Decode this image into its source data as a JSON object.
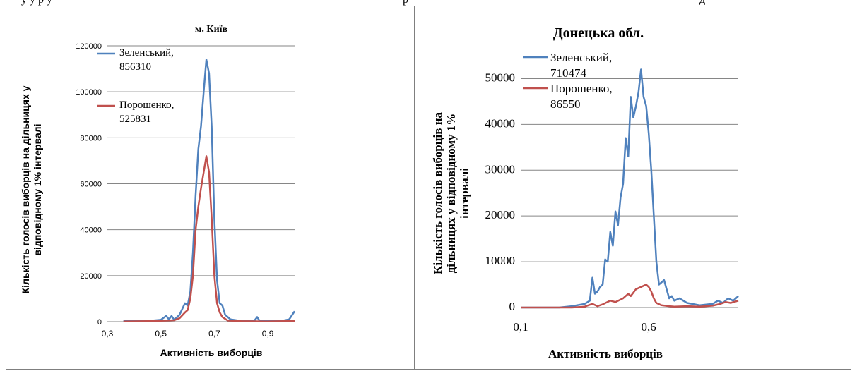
{
  "header_fragment": {
    "left": "у у р у",
    "mid": "р",
    "right": "д"
  },
  "chart_data": [
    {
      "type": "line",
      "title": "м. Київ",
      "xlabel": "Активність виборців",
      "ylabel": "Кількість голосів виборців на дільницях у відповідному 1% інтервалі",
      "xlim": [
        0.3,
        1.0
      ],
      "ylim": [
        0,
        120000
      ],
      "x_ticks": [
        "0,3",
        "0,5",
        "0,7",
        "0,9"
      ],
      "y_ticks": [
        "0",
        "20000",
        "40000",
        "60000",
        "80000",
        "100000",
        "120000"
      ],
      "grid": "horizontal",
      "series": [
        {
          "name": "Зеленський,",
          "total": "856310",
          "color": "#4f81bd",
          "points": [
            [
              0.36,
              200
            ],
            [
              0.41,
              400
            ],
            [
              0.45,
              300
            ],
            [
              0.5,
              800
            ],
            [
              0.52,
              2500
            ],
            [
              0.53,
              1000
            ],
            [
              0.54,
              2500
            ],
            [
              0.55,
              800
            ],
            [
              0.57,
              3000
            ],
            [
              0.59,
              8000
            ],
            [
              0.6,
              7000
            ],
            [
              0.61,
              13000
            ],
            [
              0.62,
              30000
            ],
            [
              0.63,
              55000
            ],
            [
              0.64,
              75000
            ],
            [
              0.65,
              85000
            ],
            [
              0.66,
              100000
            ],
            [
              0.67,
              114000
            ],
            [
              0.68,
              108000
            ],
            [
              0.69,
              85000
            ],
            [
              0.7,
              45000
            ],
            [
              0.71,
              18000
            ],
            [
              0.72,
              8000
            ],
            [
              0.73,
              7000
            ],
            [
              0.74,
              3000
            ],
            [
              0.76,
              1000
            ],
            [
              0.8,
              300
            ],
            [
              0.85,
              500
            ],
            [
              0.86,
              2000
            ],
            [
              0.87,
              200
            ],
            [
              0.92,
              200
            ],
            [
              0.95,
              300
            ],
            [
              0.98,
              1000
            ],
            [
              1.0,
              4500
            ]
          ]
        },
        {
          "name": "Порошенко,",
          "total": "525831",
          "color": "#c0504d",
          "points": [
            [
              0.36,
              100
            ],
            [
              0.45,
              200
            ],
            [
              0.5,
              400
            ],
            [
              0.55,
              600
            ],
            [
              0.57,
              1500
            ],
            [
              0.59,
              4000
            ],
            [
              0.6,
              5000
            ],
            [
              0.61,
              10000
            ],
            [
              0.62,
              20000
            ],
            [
              0.63,
              40000
            ],
            [
              0.64,
              50000
            ],
            [
              0.65,
              58000
            ],
            [
              0.66,
              65000
            ],
            [
              0.67,
              72000
            ],
            [
              0.68,
              65000
            ],
            [
              0.69,
              45000
            ],
            [
              0.7,
              20000
            ],
            [
              0.71,
              8000
            ],
            [
              0.72,
              4000
            ],
            [
              0.73,
              2000
            ],
            [
              0.75,
              500
            ],
            [
              0.8,
              200
            ],
            [
              0.9,
              100
            ],
            [
              1.0,
              300
            ]
          ]
        }
      ]
    },
    {
      "type": "line",
      "title": "Донецька обл.",
      "xlabel": "Активність виборців",
      "ylabel": "Кількість голосів виборців на дільницях у відповідному 1% інтервалі",
      "xlim": [
        0.1,
        0.95
      ],
      "ylim": [
        0,
        55000
      ],
      "x_ticks": [
        "0,1",
        "0,6"
      ],
      "y_ticks": [
        "0",
        "10000",
        "20000",
        "30000",
        "40000",
        "50000"
      ],
      "grid": "horizontal",
      "series": [
        {
          "name": "Зеленський,",
          "total": "710474",
          "color": "#4f81bd",
          "points": [
            [
              0.1,
              0
            ],
            [
              0.25,
              0
            ],
            [
              0.3,
              300
            ],
            [
              0.35,
              800
            ],
            [
              0.37,
              1500
            ],
            [
              0.38,
              6500
            ],
            [
              0.39,
              3000
            ],
            [
              0.4,
              3500
            ],
            [
              0.41,
              4500
            ],
            [
              0.42,
              5000
            ],
            [
              0.43,
              10500
            ],
            [
              0.44,
              10000
            ],
            [
              0.45,
              16500
            ],
            [
              0.46,
              13500
            ],
            [
              0.47,
              21000
            ],
            [
              0.48,
              18000
            ],
            [
              0.49,
              24000
            ],
            [
              0.5,
              27000
            ],
            [
              0.51,
              37000
            ],
            [
              0.52,
              33000
            ],
            [
              0.53,
              46000
            ],
            [
              0.54,
              41500
            ],
            [
              0.55,
              44000
            ],
            [
              0.56,
              47000
            ],
            [
              0.57,
              52000
            ],
            [
              0.58,
              46000
            ],
            [
              0.59,
              44000
            ],
            [
              0.6,
              38000
            ],
            [
              0.61,
              30000
            ],
            [
              0.62,
              20000
            ],
            [
              0.63,
              10000
            ],
            [
              0.64,
              5000
            ],
            [
              0.65,
              5500
            ],
            [
              0.66,
              6000
            ],
            [
              0.67,
              4000
            ],
            [
              0.68,
              2000
            ],
            [
              0.69,
              2500
            ],
            [
              0.7,
              1500
            ],
            [
              0.72,
              2000
            ],
            [
              0.75,
              1000
            ],
            [
              0.8,
              500
            ],
            [
              0.85,
              800
            ],
            [
              0.87,
              1500
            ],
            [
              0.89,
              1000
            ],
            [
              0.91,
              2000
            ],
            [
              0.93,
              1500
            ],
            [
              0.95,
              2500
            ]
          ]
        },
        {
          "name": "Порошенко,",
          "total": "86550",
          "color": "#c0504d",
          "points": [
            [
              0.1,
              0
            ],
            [
              0.3,
              0
            ],
            [
              0.35,
              200
            ],
            [
              0.38,
              800
            ],
            [
              0.4,
              300
            ],
            [
              0.42,
              700
            ],
            [
              0.45,
              1500
            ],
            [
              0.47,
              1200
            ],
            [
              0.5,
              2000
            ],
            [
              0.52,
              3000
            ],
            [
              0.53,
              2500
            ],
            [
              0.55,
              4000
            ],
            [
              0.57,
              4500
            ],
            [
              0.59,
              5000
            ],
            [
              0.6,
              4500
            ],
            [
              0.61,
              3500
            ],
            [
              0.62,
              2000
            ],
            [
              0.63,
              1000
            ],
            [
              0.65,
              500
            ],
            [
              0.68,
              300
            ],
            [
              0.7,
              200
            ],
            [
              0.75,
              300
            ],
            [
              0.8,
              200
            ],
            [
              0.85,
              400
            ],
            [
              0.88,
              800
            ],
            [
              0.9,
              1200
            ],
            [
              0.92,
              1000
            ],
            [
              0.95,
              1500
            ]
          ]
        }
      ]
    }
  ]
}
